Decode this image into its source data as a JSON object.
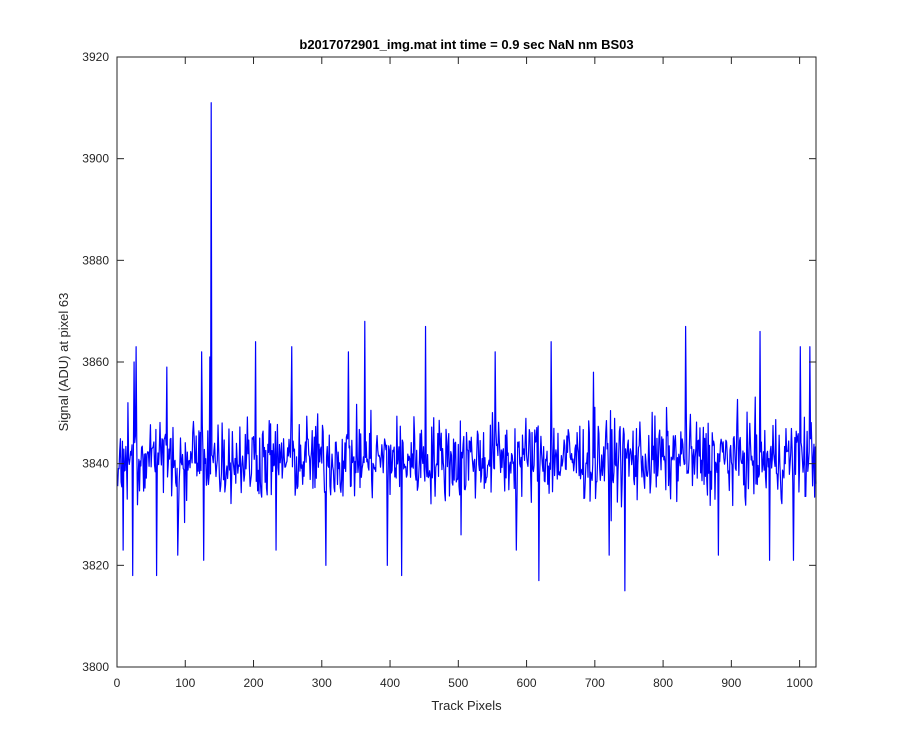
{
  "chart_data": {
    "type": "line",
    "title": "b2017072901_img.mat int time = 0.9 sec  NaN nm BS03",
    "xlabel": "Track Pixels",
    "ylabel": "Signal (ADU) at pixel 63",
    "xlim": [
      0,
      1024
    ],
    "ylim": [
      3800,
      3920
    ],
    "xticks": [
      0,
      100,
      200,
      300,
      400,
      500,
      600,
      700,
      800,
      900,
      1000
    ],
    "yticks": [
      3800,
      3820,
      3840,
      3860,
      3880,
      3900,
      3920
    ],
    "grid": false,
    "legend": "none",
    "series": [
      {
        "color": "#0000ff",
        "baseline_mean": 3841,
        "noise_range": [
          3815,
          3868
        ],
        "n_points": 1024,
        "notable_points": [
          {
            "x": 2,
            "y": 3839
          },
          {
            "x": 8,
            "y": 3823
          },
          {
            "x": 15,
            "y": 3852
          },
          {
            "x": 22,
            "y": 3818
          },
          {
            "x": 24,
            "y": 3860
          },
          {
            "x": 27,
            "y": 3863
          },
          {
            "x": 57,
            "y": 3818
          },
          {
            "x": 72,
            "y": 3859
          },
          {
            "x": 88,
            "y": 3822
          },
          {
            "x": 123,
            "y": 3862
          },
          {
            "x": 126,
            "y": 3821
          },
          {
            "x": 135,
            "y": 3861
          },
          {
            "x": 137,
            "y": 3911
          },
          {
            "x": 202,
            "y": 3864
          },
          {
            "x": 232,
            "y": 3823
          },
          {
            "x": 255,
            "y": 3863
          },
          {
            "x": 305,
            "y": 3820
          },
          {
            "x": 338,
            "y": 3862
          },
          {
            "x": 362,
            "y": 3868
          },
          {
            "x": 395,
            "y": 3820
          },
          {
            "x": 416,
            "y": 3818
          },
          {
            "x": 451,
            "y": 3867
          },
          {
            "x": 503,
            "y": 3826
          },
          {
            "x": 553,
            "y": 3862
          },
          {
            "x": 584,
            "y": 3823
          },
          {
            "x": 617,
            "y": 3817
          },
          {
            "x": 635,
            "y": 3864
          },
          {
            "x": 697,
            "y": 3858
          },
          {
            "x": 720,
            "y": 3822
          },
          {
            "x": 743,
            "y": 3815
          },
          {
            "x": 832,
            "y": 3867
          },
          {
            "x": 880,
            "y": 3822
          },
          {
            "x": 941,
            "y": 3866
          },
          {
            "x": 955,
            "y": 3821
          },
          {
            "x": 990,
            "y": 3821
          },
          {
            "x": 1000,
            "y": 3863
          },
          {
            "x": 1014,
            "y": 3863
          }
        ]
      }
    ]
  }
}
